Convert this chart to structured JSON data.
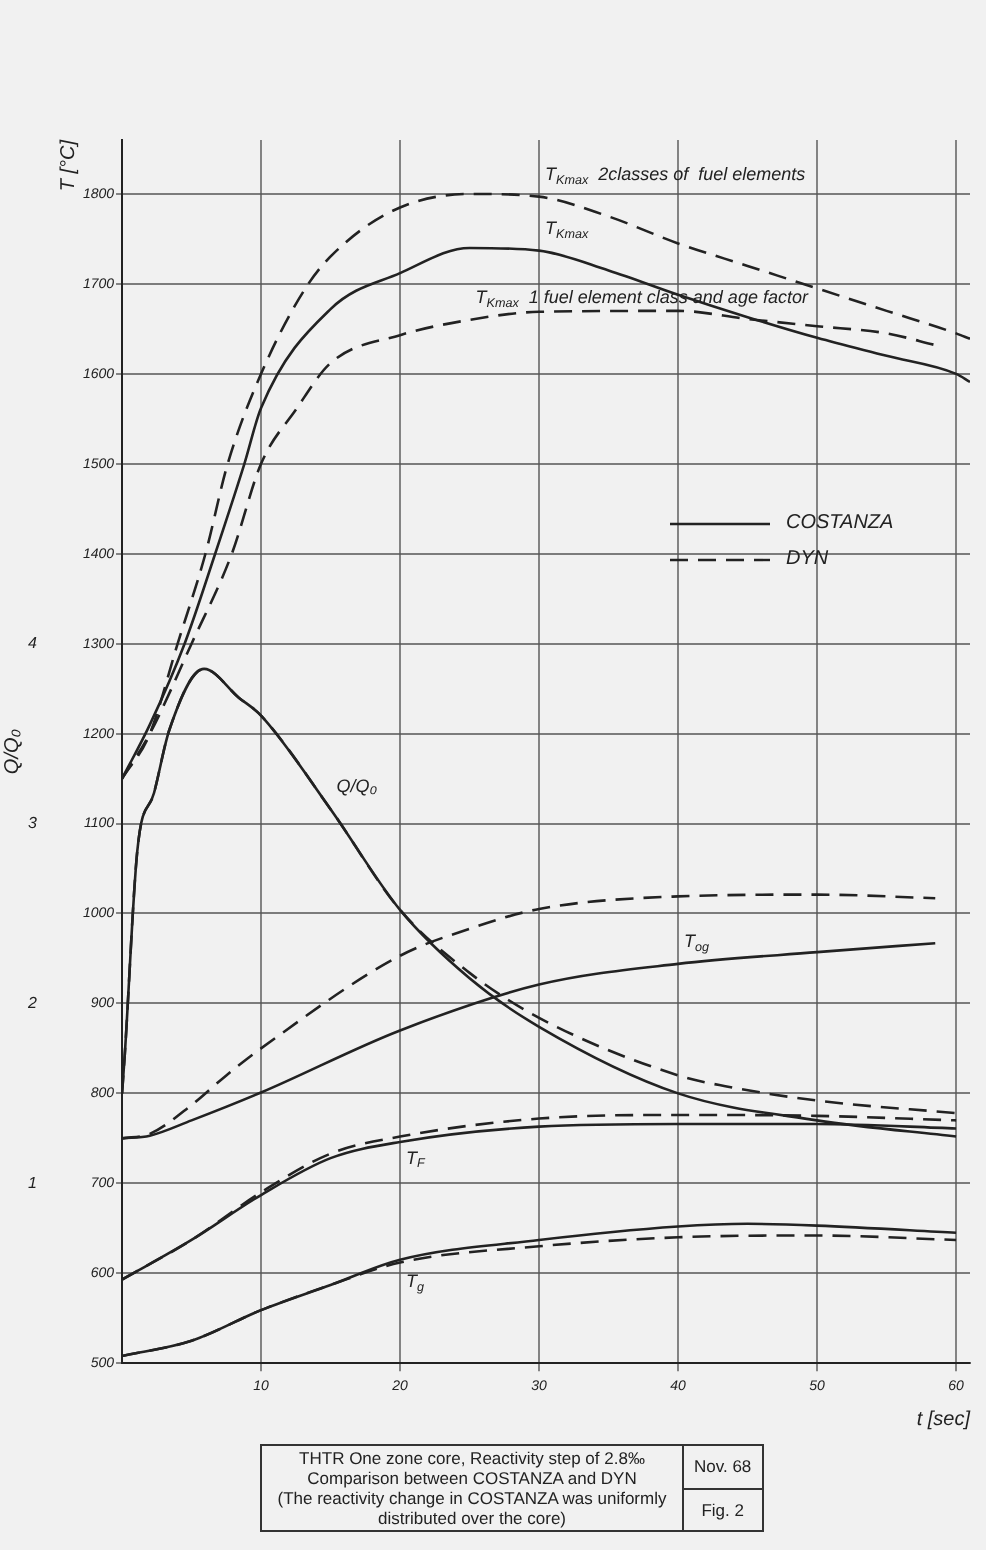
{
  "chart_data": {
    "type": "line",
    "title": "THTR One zone core, Reactivity step of 2.8‰",
    "subtitle": "Comparison between COSTANZA and DYN",
    "xlabel": "t [sec]",
    "ylabel": "T [°C]",
    "y2label": "Q/Q₀",
    "xlim": [
      0,
      61
    ],
    "xticks": [
      10,
      20,
      30,
      40,
      50,
      60
    ],
    "ylim": [
      500,
      1860
    ],
    "yticks": [
      500,
      600,
      700,
      800,
      900,
      1000,
      1100,
      1200,
      1300,
      1400,
      1500,
      1600,
      1700,
      1800
    ],
    "y2lim": [
      0,
      6.8
    ],
    "y2ticks": [
      1,
      2,
      3,
      4
    ],
    "grid": true,
    "legend": "right",
    "series": [
      {
        "name": "COSTANZA",
        "color": "#222222",
        "line_style": "solid",
        "x": [
          0,
          2,
          4.5,
          6.7,
          8.8,
          10,
          15,
          20,
          25,
          30,
          35,
          40,
          45,
          50,
          55,
          60,
          61
        ],
        "values": [
          1150,
          1210,
          1300,
          1400,
          1500,
          1562,
          1672,
          1712,
          1740,
          1737,
          1715,
          1688,
          1663,
          1640,
          1620,
          1600,
          1591
        ]
      },
      {
        "name": "DYN",
        "color": "#222222",
        "line_style": "dashed",
        "x": [
          0,
          2,
          4,
          6,
          7.6,
          10,
          13.4,
          16,
          20,
          25,
          30,
          35,
          40,
          45,
          50,
          55,
          60,
          61
        ],
        "values": [
          1150,
          1200,
          1300,
          1400,
          1500,
          1600,
          1700,
          1745,
          1785,
          1800,
          1797,
          1775,
          1745,
          1720,
          1695,
          1670,
          1645,
          1639
        ]
      },
      {
        "color": "#222222",
        "line_style": "dashed",
        "x": [
          0,
          2,
          5,
          7.9,
          10,
          12.5,
          15,
          20,
          25,
          30,
          40,
          45,
          50,
          55,
          58.5
        ],
        "values": [
          1150,
          1200,
          1300,
          1400,
          1500,
          1560,
          1612,
          1643,
          1660,
          1669,
          1670,
          1661,
          1653,
          1645,
          1632
        ]
      },
      {
        "color": "#222222",
        "line_style": "solid",
        "axis": "y2",
        "x": [
          0,
          0.2,
          1.1,
          2.3,
          3.4,
          5.9,
          8.4,
          10,
          15,
          20,
          25,
          30,
          40,
          50,
          60
        ],
        "values": [
          1.5,
          1.72,
          2.85,
          3.17,
          3.52,
          3.86,
          3.7,
          3.6,
          3.08,
          2.52,
          2.14,
          1.87,
          1.5,
          1.35,
          1.26
        ]
      },
      {
        "color": "#222222",
        "line_style": "dashed",
        "axis": "y2",
        "x": [
          0,
          0.2,
          1.1,
          2.3,
          3.4,
          5.9,
          8.4,
          10,
          15,
          20,
          25,
          30,
          40,
          43.4,
          50,
          60
        ],
        "values": [
          1.5,
          1.72,
          2.85,
          3.17,
          3.52,
          3.86,
          3.7,
          3.6,
          3.08,
          2.52,
          2.17,
          1.92,
          1.6,
          1.54,
          1.46,
          1.39
        ]
      },
      {
        "color": "#222222",
        "line_style": "solid",
        "x": [
          0,
          2,
          5,
          10,
          20,
          30,
          40,
          50,
          58.5
        ],
        "values": [
          750,
          753,
          770,
          801,
          870,
          921,
          944,
          957,
          967
        ]
      },
      {
        "color": "#222222",
        "line_style": "dashed",
        "x": [
          0,
          2,
          5,
          7.5,
          10,
          20,
          25,
          30,
          40,
          50,
          58.5
        ],
        "values": [
          750,
          755,
          787,
          820,
          850,
          953,
          983,
          1005,
          1019,
          1021,
          1017
        ]
      },
      {
        "color": "#222222",
        "line_style": "solid",
        "x": [
          0,
          5,
          10,
          15,
          20,
          30,
          40,
          50,
          60
        ],
        "values": [
          593,
          637,
          687,
          728,
          746,
          763,
          766,
          766,
          761
        ]
      },
      {
        "color": "#222222",
        "line_style": "dashed",
        "x": [
          0,
          5,
          10,
          15,
          20,
          30,
          40,
          50,
          60
        ],
        "values": [
          593,
          637,
          690,
          733,
          752,
          772,
          776,
          775,
          770
        ]
      },
      {
        "color": "#222222",
        "line_style": "solid",
        "x": [
          0,
          5,
          10,
          15,
          20,
          30,
          40,
          45,
          50,
          60
        ],
        "values": [
          508,
          525,
          559,
          587,
          615,
          637,
          652,
          655,
          653,
          645
        ]
      },
      {
        "color": "#222222",
        "line_style": "dashed",
        "x": [
          0,
          5,
          10,
          15,
          20,
          30,
          40,
          50,
          60
        ],
        "values": [
          508,
          525,
          559,
          587,
          612,
          630,
          640,
          642,
          637
        ]
      }
    ],
    "annotations": [
      {
        "text": "T$_{Kmax}$  2classes of  fuel elements",
        "x": 30,
        "y": 1797
      },
      {
        "text": "T$_{Kmax}$",
        "x": 30,
        "y": 1737
      },
      {
        "text": "T$_{Kmax}$  1 fuel element class and age factor",
        "x": 25,
        "y": 1660
      },
      {
        "text": "Q/Q₀",
        "x": 15,
        "y": 1116
      },
      {
        "text": "T$_{og}$",
        "x": 40,
        "y": 944
      },
      {
        "text": "T$_{F}$",
        "x": 20,
        "y": 752
      },
      {
        "text": "T$_{g}$",
        "x": 20,
        "y": 615
      },
      "(The reactivity change in COSTANZA was uniformly distributed over the core)",
      "Nov. 68",
      "Fig. 2"
    ]
  }
}
